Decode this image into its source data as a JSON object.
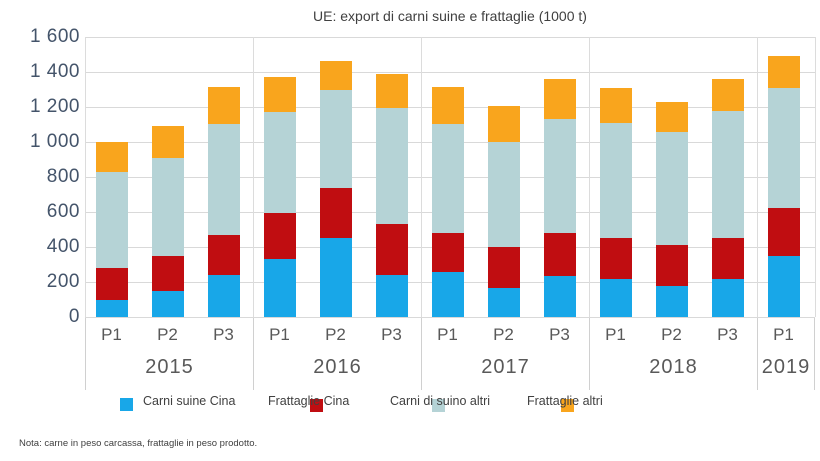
{
  "note": "Nota: carne in peso carcassa, frattaglie in peso prodotto.",
  "chart_data": {
    "type": "bar",
    "stacked": true,
    "title": "UE: export di carni suine e frattaglie (1000 t)",
    "unit": "1000 t",
    "categories": [
      "2015 P1",
      "2015 P2",
      "2015 P3",
      "2016 P1",
      "2016 P2",
      "2016 P3",
      "2017 P1",
      "2017 P2",
      "2017 P3",
      "2018 P1",
      "2018 P2",
      "2018 P3",
      "2019 P1"
    ],
    "series": [
      {
        "name": "Carni suine Cina",
        "color": "#18a7e8",
        "values": [
          100,
          150,
          240,
          330,
          450,
          240,
          255,
          165,
          235,
          215,
          180,
          215,
          350
        ]
      },
      {
        "name": "Frattaglie Cina",
        "color": "#c00d11",
        "values": [
          180,
          200,
          230,
          265,
          285,
          290,
          225,
          235,
          245,
          235,
          230,
          235,
          275
        ]
      },
      {
        "name": "Carni di suino altri",
        "color": "#b5d3d6",
        "values": [
          550,
          560,
          635,
          575,
          560,
          665,
          625,
          600,
          650,
          660,
          650,
          730,
          685
        ]
      },
      {
        "name": "Frattaglie altri",
        "color": "#f9a51d",
        "values": [
          170,
          180,
          210,
          200,
          170,
          195,
          210,
          205,
          230,
          200,
          170,
          180,
          180
        ]
      }
    ],
    "totals": [
      1000,
      1090,
      1315,
      1370,
      1465,
      1390,
      1315,
      1205,
      1360,
      1310,
      1230,
      1360,
      1490
    ],
    "ylim": [
      0,
      1600
    ],
    "ytick_step": 200,
    "ytick_labels": [
      "0",
      "200",
      "400",
      "600",
      "800",
      "1 000",
      "1 200",
      "1 400",
      "1 600"
    ],
    "grid": true,
    "legend_position": "bottom"
  },
  "x_axis": {
    "periods": [
      "P1",
      "P2",
      "P3",
      "P1",
      "P2",
      "P3",
      "P1",
      "P2",
      "P3",
      "P1",
      "P2",
      "P3",
      "P1"
    ],
    "year_groups": [
      {
        "label": "2015",
        "count": 3
      },
      {
        "label": "2016",
        "count": 3
      },
      {
        "label": "2017",
        "count": 3
      },
      {
        "label": "2018",
        "count": 3
      },
      {
        "label": "2019",
        "count": 1
      }
    ]
  },
  "legend": {
    "items": [
      "Carni suine Cina",
      "Frattaglie Cina",
      "Carni di suino altri",
      "Frattaglie altri"
    ]
  }
}
